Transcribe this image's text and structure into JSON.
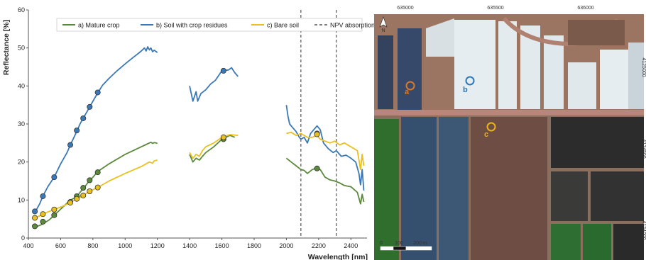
{
  "chart_data": {
    "type": "line",
    "xlabel": "Wavelength [nm]",
    "ylabel": "Reflectance [%]",
    "xlim": [
      400,
      2500
    ],
    "ylim": [
      0,
      60
    ],
    "x_ticks": [
      "400",
      "600",
      "800",
      "1000",
      "1200",
      "1400",
      "1600",
      "1800",
      "2000",
      "2200",
      "2400"
    ],
    "y_ticks": [
      "0",
      "10",
      "20",
      "30",
      "40",
      "50",
      "60"
    ],
    "grid": false,
    "legend_position": "top",
    "vlines": [
      {
        "name": "NPV absorptions",
        "x": 2090
      },
      {
        "x": 2310
      }
    ],
    "series": [
      {
        "name": "a) Mature crop",
        "color": "#5a8a3a",
        "segments": [
          [
            [
              430,
              2.8
            ],
            [
              450,
              3.0
            ],
            [
              480,
              3.5
            ],
            [
              500,
              4.0
            ],
            [
              530,
              4.8
            ],
            [
              560,
              6.0
            ],
            [
              590,
              7.2
            ],
            [
              620,
              8.4
            ],
            [
              650,
              9.6
            ],
            [
              670,
              10.2
            ],
            [
              690,
              10.6
            ],
            [
              700,
              10.9
            ],
            [
              720,
              12.0
            ],
            [
              750,
              13.5
            ],
            [
              780,
              15.2
            ],
            [
              800,
              16.0
            ],
            [
              830,
              17.5
            ],
            [
              900,
              19.5
            ],
            [
              1000,
              22.0
            ],
            [
              1100,
              24.0
            ],
            [
              1130,
              24.6
            ],
            [
              1150,
              25.0
            ],
            [
              1160,
              25.2
            ],
            [
              1170,
              24.9
            ],
            [
              1180,
              25.1
            ],
            [
              1190,
              25.0
            ],
            [
              1200,
              24.9
            ]
          ],
          [
            [
              1400,
              22.0
            ],
            [
              1420,
              20.0
            ],
            [
              1440,
              21.0
            ],
            [
              1460,
              20.5
            ],
            [
              1480,
              21.5
            ],
            [
              1500,
              22.5
            ],
            [
              1550,
              24.0
            ],
            [
              1600,
              26.0
            ],
            [
              1650,
              27.0
            ],
            [
              1680,
              26.5
            ]
          ],
          [
            [
              2000,
              21.0
            ],
            [
              2030,
              20.0
            ],
            [
              2060,
              19.0
            ],
            [
              2090,
              18.0
            ],
            [
              2110,
              17.8
            ],
            [
              2130,
              17.0
            ],
            [
              2160,
              18.0
            ],
            [
              2190,
              18.5
            ],
            [
              2210,
              18.0
            ],
            [
              2240,
              16.0
            ],
            [
              2270,
              15.3
            ],
            [
              2300,
              15.0
            ],
            [
              2330,
              14.5
            ],
            [
              2360,
              13.8
            ],
            [
              2400,
              13.5
            ],
            [
              2440,
              12.0
            ],
            [
              2460,
              9.0
            ],
            [
              2470,
              11.5
            ],
            [
              2480,
              9.5
            ]
          ]
        ],
        "markers": [
          [
            440,
            3.1
          ],
          [
            490,
            4.3
          ],
          [
            560,
            6.0
          ],
          [
            660,
            9.5
          ],
          [
            700,
            11.0
          ],
          [
            740,
            13.2
          ],
          [
            780,
            15.2
          ],
          [
            830,
            17.3
          ],
          [
            1610,
            26.0
          ],
          [
            2190,
            18.3
          ]
        ]
      },
      {
        "name": "b) Soil with crop residues",
        "color": "#3a78b8",
        "segments": [
          [
            [
              430,
              6.5
            ],
            [
              450,
              7.5
            ],
            [
              470,
              9.0
            ],
            [
              490,
              11.0
            ],
            [
              520,
              13.5
            ],
            [
              560,
              16.0
            ],
            [
              600,
              19.5
            ],
            [
              640,
              22.5
            ],
            [
              660,
              24.5
            ],
            [
              700,
              28.0
            ],
            [
              720,
              30.0
            ],
            [
              740,
              31.5
            ],
            [
              760,
              33.0
            ],
            [
              780,
              34.5
            ],
            [
              800,
              36.0
            ],
            [
              830,
              38.2
            ],
            [
              860,
              40.2
            ],
            [
              900,
              42.0
            ],
            [
              950,
              44.0
            ],
            [
              1000,
              45.8
            ],
            [
              1050,
              47.5
            ],
            [
              1080,
              48.5
            ],
            [
              1100,
              49.2
            ],
            [
              1120,
              50.0
            ],
            [
              1130,
              49.2
            ],
            [
              1140,
              50.3
            ],
            [
              1150,
              49.5
            ],
            [
              1160,
              50.0
            ],
            [
              1170,
              49.0
            ],
            [
              1180,
              49.4
            ],
            [
              1200,
              48.8
            ]
          ],
          [
            [
              1400,
              40.0
            ],
            [
              1410,
              38.0
            ],
            [
              1420,
              36.0
            ],
            [
              1440,
              38.5
            ],
            [
              1450,
              36.0
            ],
            [
              1470,
              38.0
            ],
            [
              1500,
              39.0
            ],
            [
              1530,
              40.5
            ],
            [
              1560,
              41.5
            ],
            [
              1600,
              44.0
            ],
            [
              1640,
              44.2
            ],
            [
              1660,
              44.8
            ],
            [
              1680,
              43.5
            ],
            [
              1700,
              42.5
            ]
          ],
          [
            [
              2000,
              35.0
            ],
            [
              2010,
              32.0
            ],
            [
              2020,
              30.0
            ],
            [
              2040,
              29.0
            ],
            [
              2060,
              28.0
            ],
            [
              2080,
              26.5
            ],
            [
              2090,
              26.0
            ],
            [
              2110,
              26.5
            ],
            [
              2130,
              25.0
            ],
            [
              2150,
              27.5
            ],
            [
              2170,
              28.5
            ],
            [
              2190,
              29.5
            ],
            [
              2210,
              28.5
            ],
            [
              2230,
              25.0
            ],
            [
              2260,
              23.5
            ],
            [
              2290,
              22.5
            ],
            [
              2310,
              23.0
            ],
            [
              2340,
              21.5
            ],
            [
              2370,
              21.8
            ],
            [
              2400,
              21.0
            ],
            [
              2430,
              20.0
            ],
            [
              2450,
              17.0
            ],
            [
              2460,
              14.0
            ],
            [
              2470,
              18.0
            ],
            [
              2480,
              12.5
            ]
          ]
        ],
        "markers": [
          [
            440,
            7.0
          ],
          [
            490,
            11.0
          ],
          [
            560,
            16.0
          ],
          [
            660,
            24.5
          ],
          [
            700,
            28.3
          ],
          [
            740,
            31.5
          ],
          [
            780,
            34.5
          ],
          [
            830,
            38.3
          ],
          [
            1610,
            44.0
          ],
          [
            2190,
            27.5
          ]
        ]
      },
      {
        "name": "c) Bare soil",
        "color": "#e8c020",
        "segments": [
          [
            [
              430,
              5.2
            ],
            [
              450,
              5.5
            ],
            [
              480,
              6.0
            ],
            [
              500,
              6.5
            ],
            [
              530,
              7.0
            ],
            [
              560,
              7.5
            ],
            [
              590,
              8.0
            ],
            [
              620,
              8.5
            ],
            [
              660,
              9.3
            ],
            [
              700,
              10.3
            ],
            [
              740,
              11.2
            ],
            [
              780,
              12.3
            ],
            [
              830,
              13.3
            ],
            [
              900,
              15.0
            ],
            [
              1000,
              17.0
            ],
            [
              1100,
              18.8
            ],
            [
              1130,
              19.5
            ],
            [
              1150,
              20.0
            ],
            [
              1170,
              19.7
            ],
            [
              1180,
              20.3
            ],
            [
              1200,
              20.5
            ]
          ],
          [
            [
              1400,
              22.5
            ],
            [
              1420,
              21.0
            ],
            [
              1440,
              22.0
            ],
            [
              1460,
              21.5
            ],
            [
              1480,
              23.0
            ],
            [
              1500,
              24.0
            ],
            [
              1550,
              25.0
            ],
            [
              1600,
              26.5
            ],
            [
              1650,
              27.2
            ],
            [
              1700,
              27.0
            ]
          ],
          [
            [
              2000,
              27.5
            ],
            [
              2030,
              27.8
            ],
            [
              2060,
              27.0
            ],
            [
              2090,
              27.5
            ],
            [
              2110,
              27.0
            ],
            [
              2130,
              26.5
            ],
            [
              2160,
              26.5
            ],
            [
              2190,
              27.0
            ],
            [
              2210,
              26.0
            ],
            [
              2240,
              25.5
            ],
            [
              2270,
              25.0
            ],
            [
              2300,
              25.5
            ],
            [
              2330,
              24.5
            ],
            [
              2360,
              25.0
            ],
            [
              2400,
              24.0
            ],
            [
              2440,
              23.0
            ],
            [
              2460,
              18.0
            ],
            [
              2470,
              22.0
            ],
            [
              2480,
              19.0
            ]
          ]
        ],
        "markers": [
          [
            440,
            5.3
          ],
          [
            490,
            6.3
          ],
          [
            560,
            7.5
          ],
          [
            660,
            9.3
          ],
          [
            700,
            10.3
          ],
          [
            740,
            11.2
          ],
          [
            780,
            12.3
          ],
          [
            830,
            13.3
          ],
          [
            1610,
            26.5
          ],
          [
            2190,
            27.3
          ]
        ]
      }
    ]
  },
  "map": {
    "top_coords": [
      "635000",
      "635500",
      "636000"
    ],
    "north_label": "N",
    "scale_labels": [
      "0",
      "100",
      "200 m"
    ],
    "sample_labels": [
      {
        "text": "a",
        "color": "#d9772a"
      },
      {
        "text": "b",
        "color": "#2a7ab8"
      },
      {
        "text": "c",
        "color": "#e8b418"
      }
    ],
    "right_edge_labels": [
      "4125000",
      "4124500",
      "4124000"
    ]
  }
}
